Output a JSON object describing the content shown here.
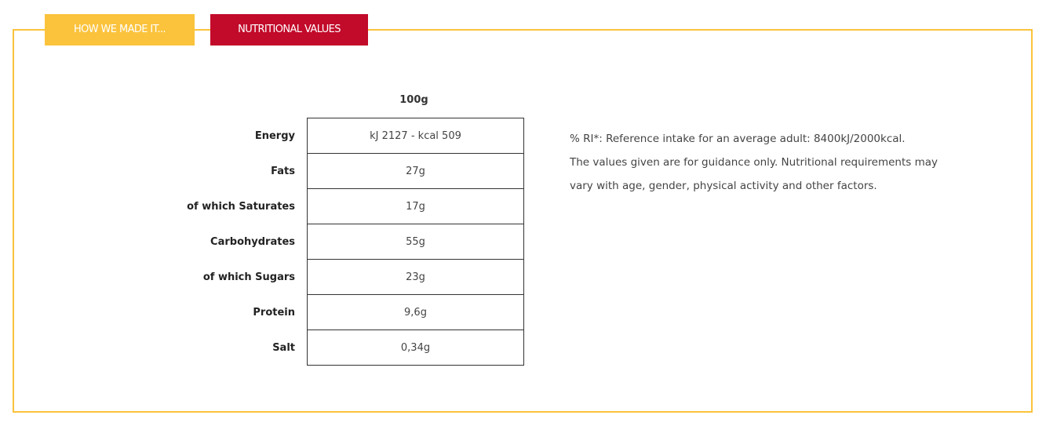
{
  "tabs": [
    {
      "label": "HOW WE MADE IT...",
      "active": false
    },
    {
      "label": "NUTRITIONAL VALUES",
      "active": true
    }
  ],
  "colors": {
    "accent_yellow": "#fbc33c",
    "accent_red": "#c20a2a"
  },
  "table": {
    "column_header": "100g",
    "rows": [
      {
        "label": "Energy",
        "value": "kJ 2127 - kcal 509"
      },
      {
        "label": "Fats",
        "value": "27g"
      },
      {
        "label": "of which Saturates",
        "value": "17g"
      },
      {
        "label": "Carbohydrates",
        "value": "55g"
      },
      {
        "label": "of which Sugars",
        "value": "23g"
      },
      {
        "label": "Protein",
        "value": "9,6g"
      },
      {
        "label": "Salt",
        "value": "0,34g"
      }
    ]
  },
  "note": {
    "line1": "% RI*: Reference intake for an average adult: 8400kJ/2000kcal.",
    "line2": "The values given are for guidance only. Nutritional requirements may vary with age, gender, physical activity and other factors."
  }
}
